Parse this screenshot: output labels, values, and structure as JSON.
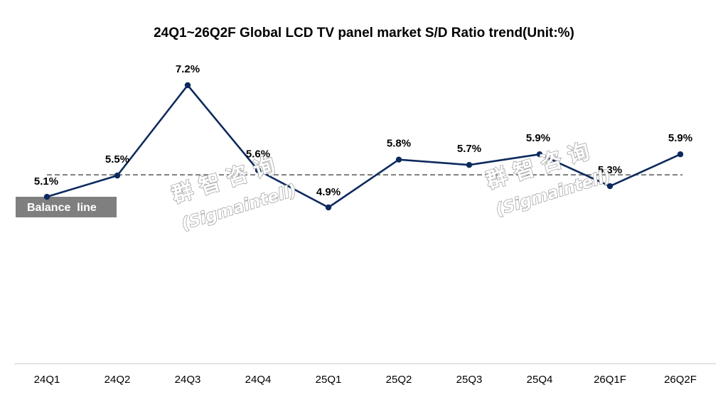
{
  "chart_data": {
    "type": "line",
    "title": "24Q1~26Q2F Global LCD TV panel market S/D Ratio trend(Unit:%)",
    "xlabel": "",
    "ylabel": "",
    "categories": [
      "24Q1",
      "24Q2",
      "24Q3",
      "24Q4",
      "25Q1",
      "25Q2",
      "25Q3",
      "25Q4",
      "26Q1F",
      "26Q2F"
    ],
    "series": [
      {
        "name": "S/D Ratio",
        "values": [
          5.1,
          5.5,
          7.2,
          5.6,
          4.9,
          5.8,
          5.7,
          5.9,
          5.3,
          5.9
        ],
        "labels": [
          "5.1%",
          "5.5%",
          "7.2%",
          "5.6%",
          "4.9%",
          "5.8%",
          "5.7%",
          "5.9%",
          "5.3%",
          "5.9%"
        ],
        "color": "#0d2a5e"
      }
    ],
    "balance_line": {
      "value": 5.5,
      "label": "Balance  line",
      "color": "#7f7f7f"
    },
    "ylim": [
      1.0,
      7.4
    ],
    "grid": false,
    "legend": "none"
  },
  "watermark": {
    "chinese": "群智咨询",
    "english": "(Sigmaintell)"
  }
}
